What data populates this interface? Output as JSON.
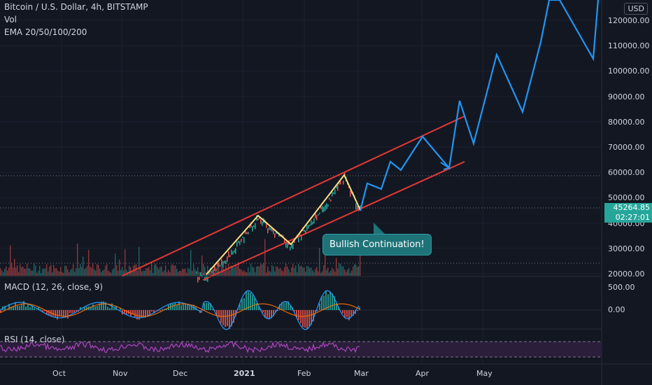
{
  "header": {
    "symbol_line": "Bitcoin / U.S. Dollar, 4h, BITSTAMP",
    "vol_label": "Vol",
    "ema_label": "EMA 20/50/100/200",
    "currency_button": "USD"
  },
  "price_axis": [
    "120000.00",
    "110000.00",
    "100000.00",
    "90000.00",
    "80000.00",
    "70000.00",
    "60000.00",
    "50000.00",
    "40000.00",
    "30000.00",
    "20000.00"
  ],
  "price_tag": {
    "price": "45264.85",
    "countdown": "02:27:01"
  },
  "macd": {
    "label": "MACD (12, 26, close, 9)",
    "ticks": [
      "500.00",
      "0.00"
    ]
  },
  "rsi": {
    "label": "RSI (14, close)"
  },
  "callout": "Bullish Continuation!",
  "time_axis": [
    "Oct",
    "Nov",
    "Dec",
    "2021",
    "Feb",
    "Mar",
    "Apr",
    "May"
  ],
  "colors": {
    "background": "#131722",
    "channel": "#e53935",
    "projection": "#2196f3",
    "pattern": "#ffe082",
    "up": "#26a69a",
    "down": "#ef5350",
    "rsi": "#ab47bc"
  }
}
